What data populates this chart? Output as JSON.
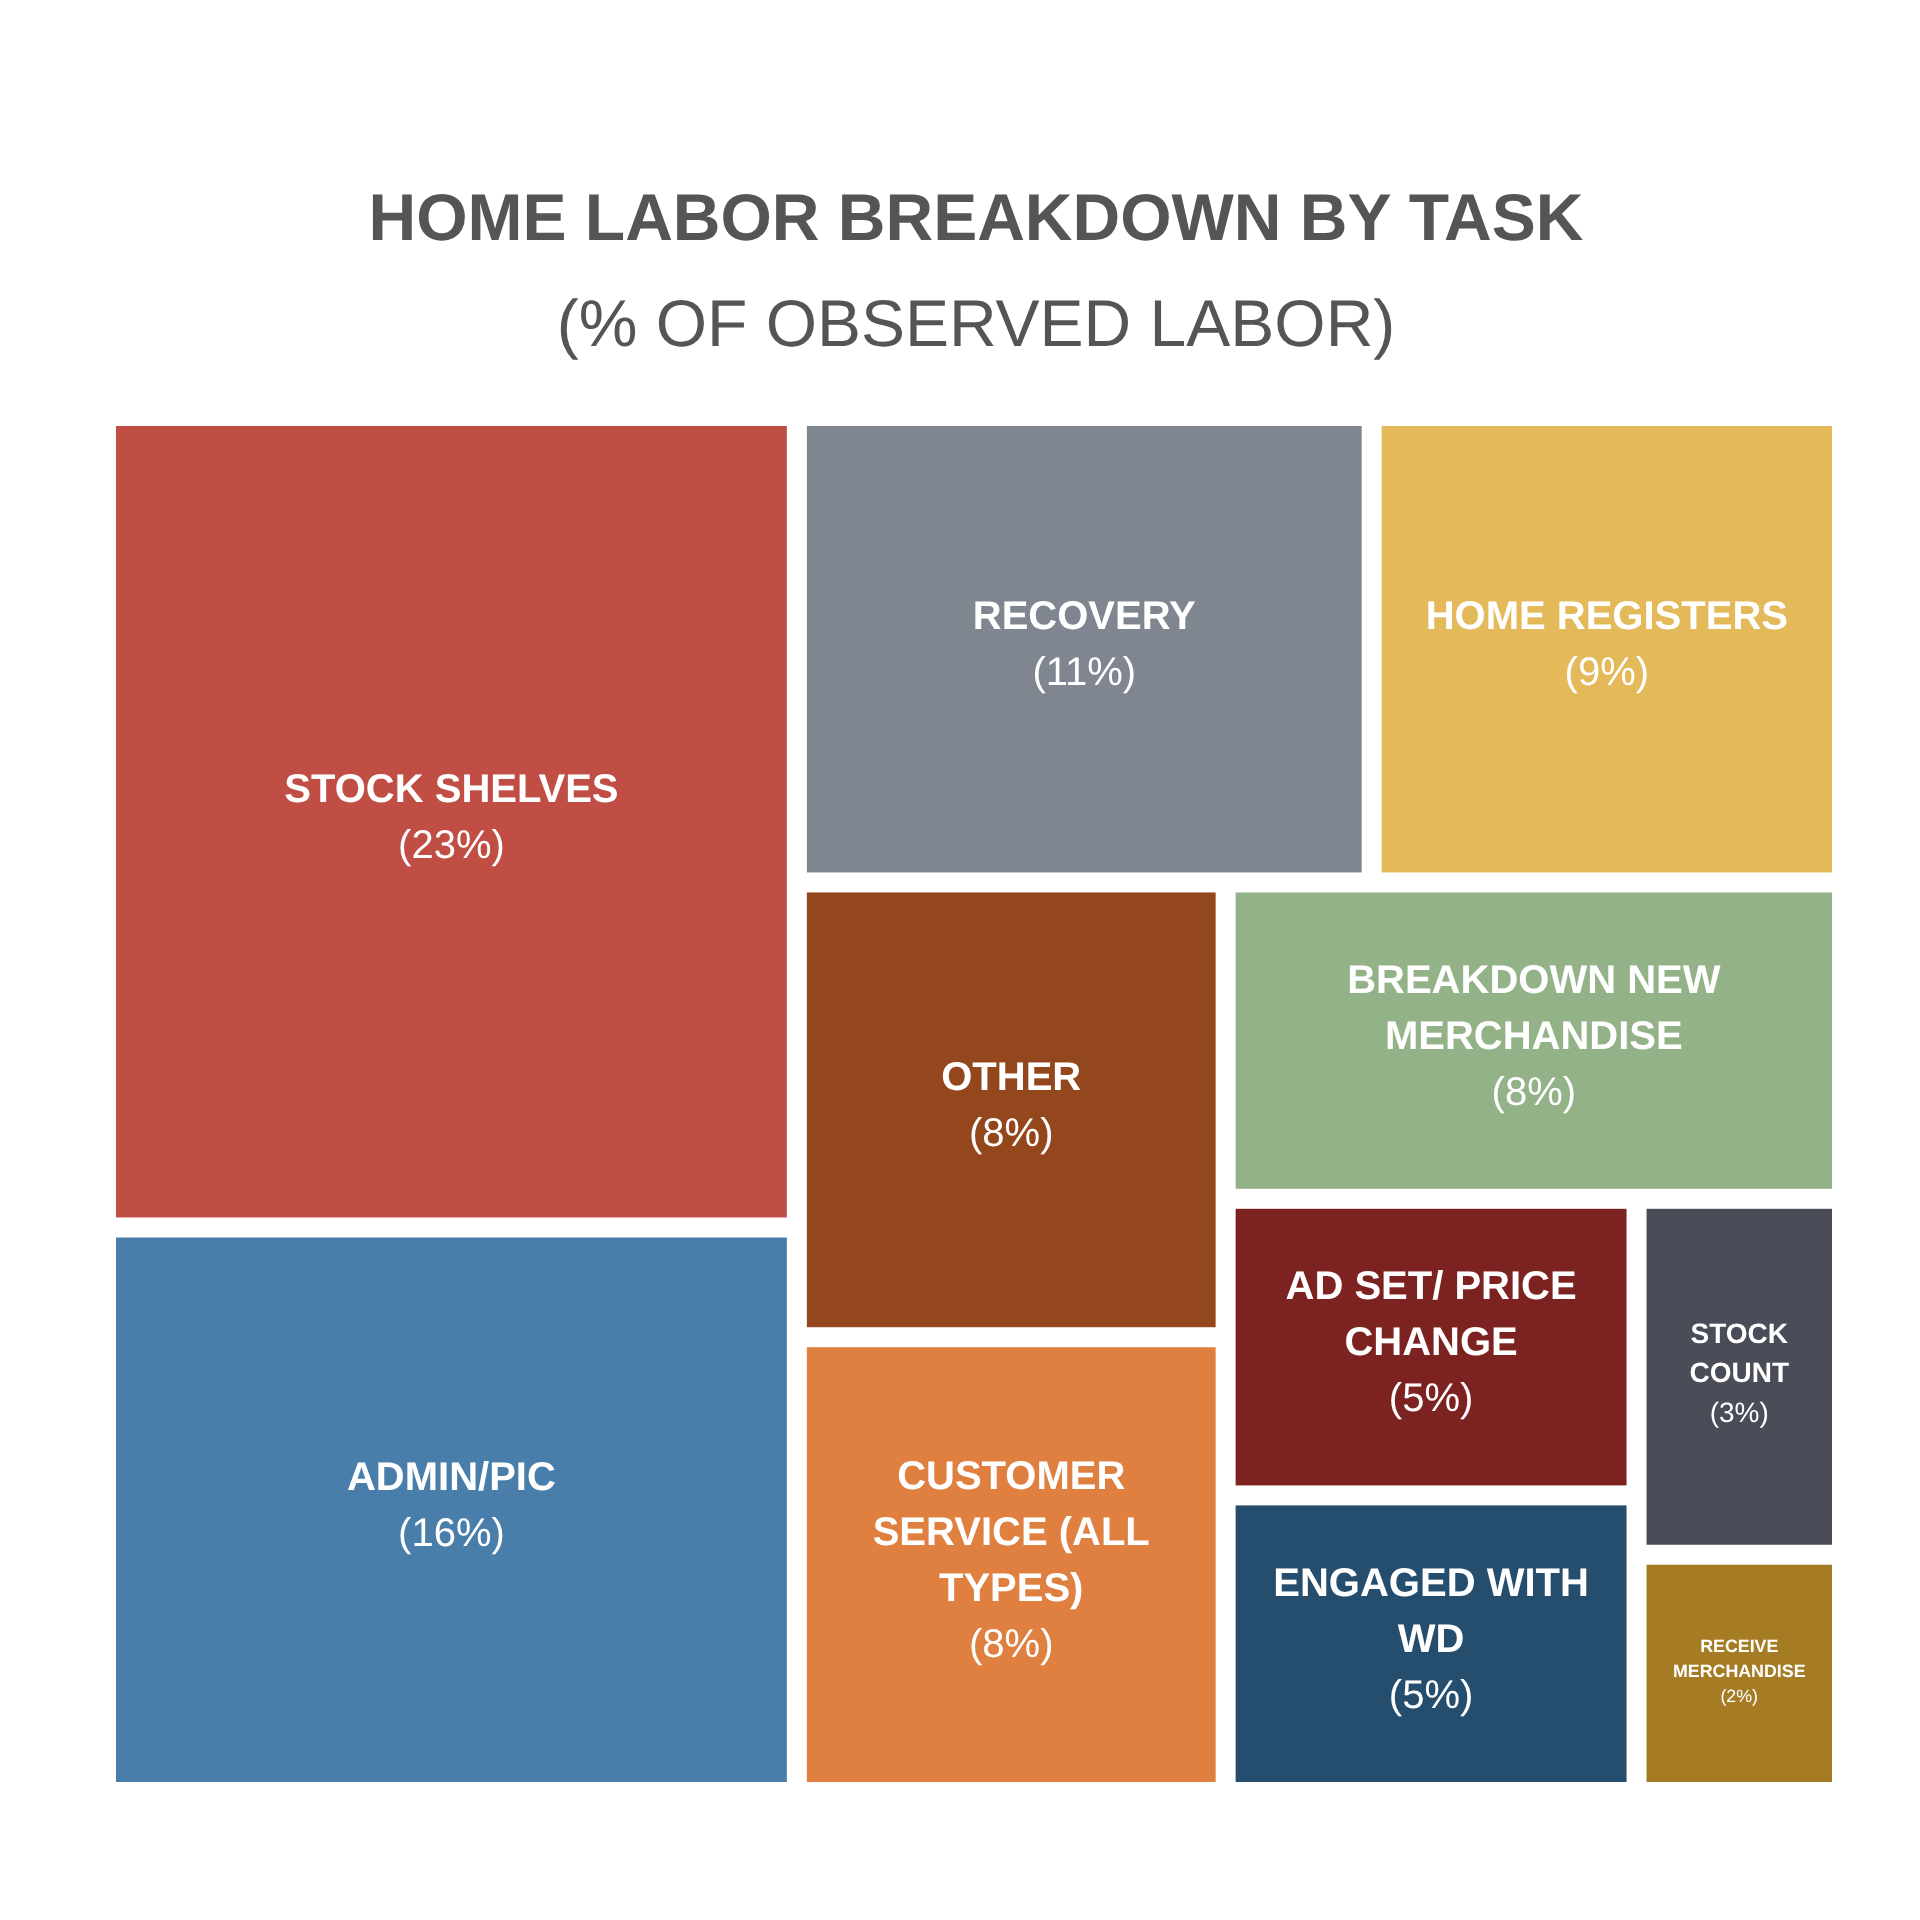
{
  "chart_data": {
    "type": "other",
    "title": "HOME LABOR BREAKDOWN BY TASK",
    "subtitle": "(% OF OBSERVED LABOR)",
    "categories": [
      "STOCK SHELVES",
      "ADMIN/PIC",
      "RECOVERY",
      "HOME REGISTERS",
      "OTHER",
      "CUSTOMER SERVICE (ALL TYPES)",
      "BREAKDOWN NEW MERCHANDISE",
      "AD SET/ PRICE CHANGE",
      "ENGAGED WITH WD",
      "STOCK COUNT",
      "RECEIVE MERCHANDISE"
    ],
    "values": [
      23,
      16,
      11,
      9,
      8,
      8,
      8,
      5,
      5,
      3,
      2
    ],
    "value_labels": [
      "(23%)",
      "(16%)",
      "(11%)",
      "(9%)",
      "(8%)",
      "(8%)",
      "(8%)",
      "(5%)",
      "(5%)",
      "(3%)",
      "(2%)"
    ],
    "colors": [
      "#c04e45",
      "#4a7eaa",
      "#7f8690",
      "#e3b95a",
      "#94471d",
      "#df8041",
      "#93b287",
      "#7c2220",
      "#244d6e",
      "#4a4d57",
      "#a57c24"
    ]
  }
}
